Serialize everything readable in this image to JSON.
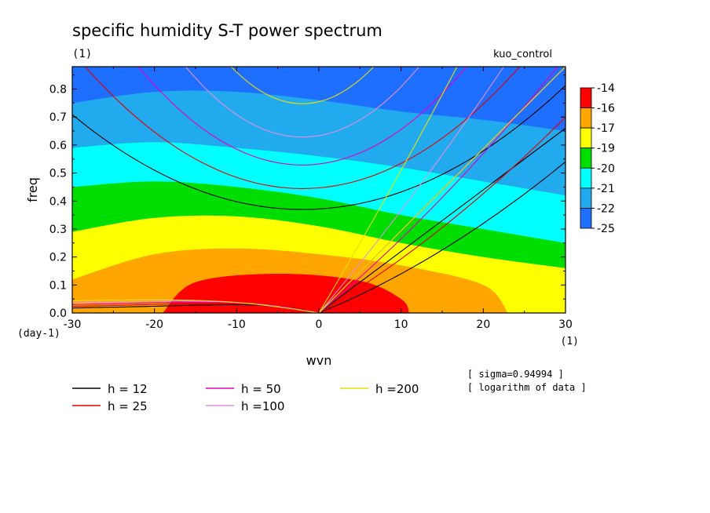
{
  "chart_data": {
    "type": "heatmap",
    "title": "specific humidity S-T power spectrum",
    "subtitle": "(1)",
    "run_label": "kuo_control",
    "xlabel": "wvn",
    "ylabel": "freq",
    "x_unit": "(1)",
    "y_unit": "(day-1)",
    "xlim": [
      -30,
      30
    ],
    "ylim": [
      0,
      0.88
    ],
    "x_ticks": [
      -30,
      -20,
      -10,
      0,
      10,
      20,
      30
    ],
    "y_ticks": [
      0.0,
      0.1,
      0.2,
      0.3,
      0.4,
      0.5,
      0.6,
      0.7,
      0.8
    ],
    "x_tick_labels": [
      "-30",
      "-20",
      "-10",
      "0",
      "10",
      "20",
      "30"
    ],
    "y_tick_labels": [
      "0.0",
      "0.1",
      "0.2",
      "0.3",
      "0.4",
      "0.5",
      "0.6",
      "0.7",
      "0.8"
    ],
    "colorbar": {
      "labels": [
        "-14",
        "-16",
        "-17",
        "-19",
        "-20",
        "-21",
        "-22",
        "-25"
      ],
      "colors": [
        "#ff0000",
        "#ffa500",
        "#ffff00",
        "#00dd00",
        "#00ffff",
        "#22aaee",
        "#1e6eff"
      ]
    },
    "contour_bands": [
      {
        "level": "-16 to -14",
        "color": "#ff0000",
        "top": [
          [
            -19,
            0.0
          ],
          [
            -15,
            0.11
          ],
          [
            -5,
            0.14
          ],
          [
            5,
            0.115
          ],
          [
            10,
            0.05
          ],
          [
            11,
            0.0
          ]
        ]
      },
      {
        "level": "-17 to -16",
        "color": "#ffa500",
        "top": [
          [
            -30,
            0.12
          ],
          [
            -20,
            0.21
          ],
          [
            -10,
            0.23
          ],
          [
            0,
            0.21
          ],
          [
            10,
            0.17
          ],
          [
            20,
            0.1
          ],
          [
            23,
            0.0
          ]
        ]
      },
      {
        "level": "-19 to -17",
        "color": "#ffff00",
        "top": [
          [
            -30,
            0.29
          ],
          [
            -20,
            0.34
          ],
          [
            -10,
            0.345
          ],
          [
            0,
            0.31
          ],
          [
            10,
            0.25
          ],
          [
            20,
            0.2
          ],
          [
            30,
            0.16
          ]
        ]
      },
      {
        "level": "-20 to -19",
        "color": "#00dd00",
        "top": [
          [
            -30,
            0.45
          ],
          [
            -20,
            0.47
          ],
          [
            -10,
            0.45
          ],
          [
            0,
            0.41
          ],
          [
            10,
            0.35
          ],
          [
            20,
            0.3
          ],
          [
            30,
            0.25
          ]
        ]
      },
      {
        "level": "-21 to -20",
        "color": "#00ffff",
        "top": [
          [
            -30,
            0.59
          ],
          [
            -20,
            0.61
          ],
          [
            -10,
            0.59
          ],
          [
            0,
            0.56
          ],
          [
            10,
            0.52
          ],
          [
            20,
            0.47
          ],
          [
            30,
            0.42
          ]
        ]
      },
      {
        "level": "-22 to -21",
        "color": "#22aaee",
        "top": [
          [
            -30,
            0.75
          ],
          [
            -20,
            0.79
          ],
          [
            -10,
            0.79
          ],
          [
            0,
            0.76
          ],
          [
            10,
            0.72
          ],
          [
            20,
            0.69
          ],
          [
            30,
            0.65
          ]
        ]
      },
      {
        "level": "-25 to -22",
        "color": "#1e6eff",
        "top": [
          [
            -30,
            0.88
          ],
          [
            30,
            0.88
          ]
        ]
      }
    ],
    "dispersion_curves": [
      {
        "name": "h = 12",
        "color": "#000000"
      },
      {
        "name": "h = 25",
        "color": "#e00000"
      },
      {
        "name": "h = 50",
        "color": "#e000c0"
      },
      {
        "name": "h =100",
        "color": "#e090e0"
      },
      {
        "name": "h =200",
        "color": "#e8e000"
      }
    ],
    "annotations": [
      "[ sigma=0.94994 ]",
      "[ logarithm of data ]"
    ],
    "grid": false,
    "legend_position": "bottom"
  }
}
